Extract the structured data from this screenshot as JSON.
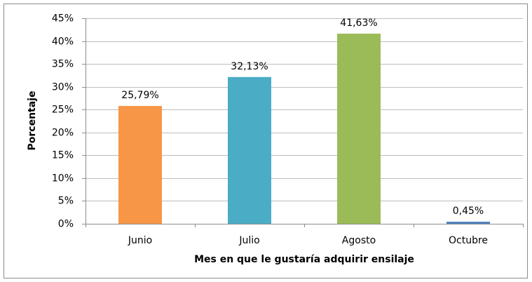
{
  "chart_data": {
    "type": "bar",
    "x_label": "Mes en que le gustaría adquirir ensilaje",
    "y_label": "Porcentaje",
    "categories": [
      "Junio",
      "Julio",
      "Agosto",
      "Octubre"
    ],
    "values": [
      25.79,
      32.13,
      41.63,
      0.45
    ],
    "value_labels": [
      "25,79%",
      "32,13%",
      "41,63%",
      "0,45%"
    ],
    "colors": [
      "#f79646",
      "#4bacc6",
      "#9bbb59",
      "#4f81bd"
    ],
    "ylim": [
      0,
      45
    ],
    "yticks": [
      {
        "value": 0,
        "label": "0%"
      },
      {
        "value": 5,
        "label": "5%"
      },
      {
        "value": 10,
        "label": "10%"
      },
      {
        "value": 15,
        "label": "15%"
      },
      {
        "value": 20,
        "label": "20%"
      },
      {
        "value": 25,
        "label": "25%"
      },
      {
        "value": 30,
        "label": "30%"
      },
      {
        "value": 35,
        "label": "35%"
      },
      {
        "value": 40,
        "label": "40%"
      },
      {
        "value": 45,
        "label": "45%"
      }
    ],
    "grid": true
  }
}
